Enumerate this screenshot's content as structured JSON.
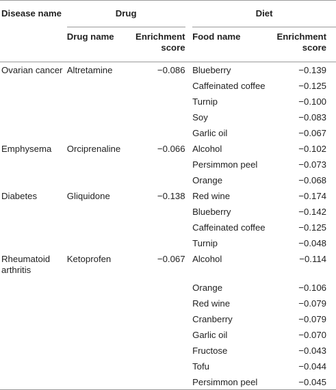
{
  "headers": {
    "disease_name": "Disease name",
    "drug": "Drug",
    "diet": "Diet",
    "drug_name": "Drug name",
    "drug_score": "Enrichment score",
    "food_name": "Food name",
    "food_score": "Enrichment score"
  },
  "rows": [
    {
      "disease": "Ovarian cancer",
      "drug": "Altretamine",
      "drug_score": "−0.086",
      "food": "Blueberry",
      "food_score": "−0.139"
    },
    {
      "disease": "",
      "drug": "",
      "drug_score": "",
      "food": "Caffeinated coffee",
      "food_score": "−0.125"
    },
    {
      "disease": "",
      "drug": "",
      "drug_score": "",
      "food": "Turnip",
      "food_score": "−0.100"
    },
    {
      "disease": "",
      "drug": "",
      "drug_score": "",
      "food": "Soy",
      "food_score": "−0.083"
    },
    {
      "disease": "",
      "drug": "",
      "drug_score": "",
      "food": "Garlic oil",
      "food_score": "−0.067"
    },
    {
      "disease": "Emphysema",
      "drug": "Orciprenaline",
      "drug_score": "−0.066",
      "food": "Alcohol",
      "food_score": "−0.102"
    },
    {
      "disease": "",
      "drug": "",
      "drug_score": "",
      "food": "Persimmon peel",
      "food_score": "−0.073"
    },
    {
      "disease": "",
      "drug": "",
      "drug_score": "",
      "food": "Orange",
      "food_score": "−0.068"
    },
    {
      "disease": "Diabetes",
      "drug": "Gliquidone",
      "drug_score": "−0.138",
      "food": "Red wine",
      "food_score": "−0.174"
    },
    {
      "disease": "",
      "drug": "",
      "drug_score": "",
      "food": "Blueberry",
      "food_score": "−0.142"
    },
    {
      "disease": "",
      "drug": "",
      "drug_score": "",
      "food": "Caffeinated coffee",
      "food_score": "−0.125"
    },
    {
      "disease": "",
      "drug": "",
      "drug_score": "",
      "food": "Turnip",
      "food_score": "−0.048"
    },
    {
      "disease": "Rheumatoid arthritis",
      "drug": "Ketoprofen",
      "drug_score": "−0.067",
      "food": "Alcohol",
      "food_score": "−0.114"
    },
    {
      "disease": "",
      "drug": "",
      "drug_score": "",
      "food": "Orange",
      "food_score": "−0.106"
    },
    {
      "disease": "",
      "drug": "",
      "drug_score": "",
      "food": "Red wine",
      "food_score": "−0.079"
    },
    {
      "disease": "",
      "drug": "",
      "drug_score": "",
      "food": "Cranberry",
      "food_score": "−0.079"
    },
    {
      "disease": "",
      "drug": "",
      "drug_score": "",
      "food": "Garlic oil",
      "food_score": "−0.070"
    },
    {
      "disease": "",
      "drug": "",
      "drug_score": "",
      "food": "Fructose",
      "food_score": "−0.043"
    },
    {
      "disease": "",
      "drug": "",
      "drug_score": "",
      "food": "Tofu",
      "food_score": "−0.044"
    },
    {
      "disease": "",
      "drug": "",
      "drug_score": "",
      "food": "Persimmon peel",
      "food_score": "−0.045"
    }
  ]
}
